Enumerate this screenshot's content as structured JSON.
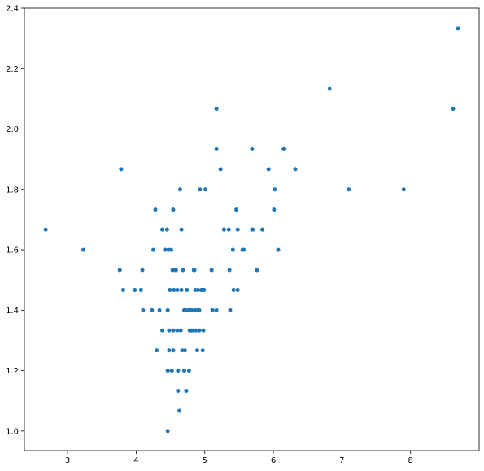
{
  "chart_data": {
    "type": "scatter",
    "color": "#1f77b4",
    "x": [
      2.68,
      3.23,
      3.78,
      3.76,
      3.81,
      3.98,
      4.07,
      4.09,
      4.1,
      4.23,
      4.25,
      4.28,
      4.3,
      4.34,
      4.38,
      4.38,
      4.42,
      4.45,
      4.46,
      4.46,
      4.46,
      4.47,
      4.48,
      4.48,
      4.49,
      4.51,
      4.52,
      4.53,
      4.54,
      4.54,
      4.54,
      4.55,
      4.57,
      4.58,
      4.6,
      4.6,
      4.61,
      4.61,
      4.63,
      4.64,
      4.65,
      4.66,
      4.66,
      4.67,
      4.68,
      4.7,
      4.7,
      4.71,
      4.72,
      4.73,
      4.74,
      4.76,
      4.77,
      4.78,
      4.78,
      4.8,
      4.81,
      4.83,
      4.84,
      4.85,
      4.86,
      4.86,
      4.87,
      4.89,
      4.9,
      4.9,
      4.92,
      4.92,
      4.93,
      4.95,
      4.97,
      4.97,
      4.98,
      5.01,
      4.99,
      5.1,
      5.11,
      5.17,
      5.17,
      5.17,
      5.23,
      5.28,
      5.35,
      5.36,
      5.37,
      5.41,
      5.42,
      5.46,
      5.48,
      5.48,
      5.55,
      5.57,
      5.69,
      5.69,
      5.7,
      5.76,
      5.84,
      5.93,
      6.01,
      6.02,
      6.07,
      6.15,
      6.32,
      6.82,
      7.1,
      7.9,
      8.62,
      8.69
    ],
    "values": [
      1.667,
      1.6,
      1.867,
      1.533,
      1.467,
      1.467,
      1.467,
      1.533,
      1.4,
      1.4,
      1.6,
      1.733,
      1.267,
      1.4,
      1.667,
      1.333,
      1.6,
      1.667,
      1.0,
      1.2,
      1.4,
      1.6,
      1.333,
      1.267,
      1.467,
      1.6,
      1.2,
      1.533,
      1.333,
      1.267,
      1.733,
      1.467,
      1.533,
      1.533,
      1.333,
      1.467,
      1.2,
      1.133,
      1.067,
      1.8,
      1.333,
      1.467,
      1.667,
      1.267,
      1.533,
      1.2,
      1.4,
      1.267,
      1.4,
      1.133,
      1.467,
      1.4,
      1.2,
      1.333,
      1.4,
      1.333,
      1.4,
      1.333,
      1.533,
      1.533,
      1.4,
      1.467,
      1.333,
      1.267,
      1.467,
      1.4,
      1.4,
      1.333,
      1.8,
      1.467,
      1.467,
      1.267,
      1.333,
      1.8,
      1.467,
      1.533,
      1.4,
      1.4,
      2.067,
      1.933,
      1.867,
      1.667,
      1.667,
      1.533,
      1.4,
      1.6,
      1.467,
      1.733,
      1.467,
      1.667,
      1.6,
      1.6,
      1.667,
      1.933,
      1.667,
      1.533,
      1.667,
      1.867,
      1.733,
      1.8,
      1.6,
      1.933,
      1.867,
      2.133,
      1.8,
      1.8,
      2.067,
      2.333
    ],
    "xlim": [
      2.37,
      9.0
    ],
    "ylim": [
      0.935,
      2.4
    ],
    "xticks": [
      3,
      4,
      5,
      6,
      7,
      8
    ],
    "yticks": [
      {
        "value": 1.0,
        "label": "1.0"
      },
      {
        "value": 1.2,
        "label": "1.2"
      },
      {
        "value": 1.4,
        "label": "1.4"
      },
      {
        "value": 1.6,
        "label": "1.6"
      },
      {
        "value": 1.8,
        "label": "1.8"
      },
      {
        "value": 2.0,
        "label": "2.0"
      },
      {
        "value": 2.2,
        "label": "2.2"
      },
      {
        "value": 2.4,
        "label": "2.4"
      }
    ]
  }
}
